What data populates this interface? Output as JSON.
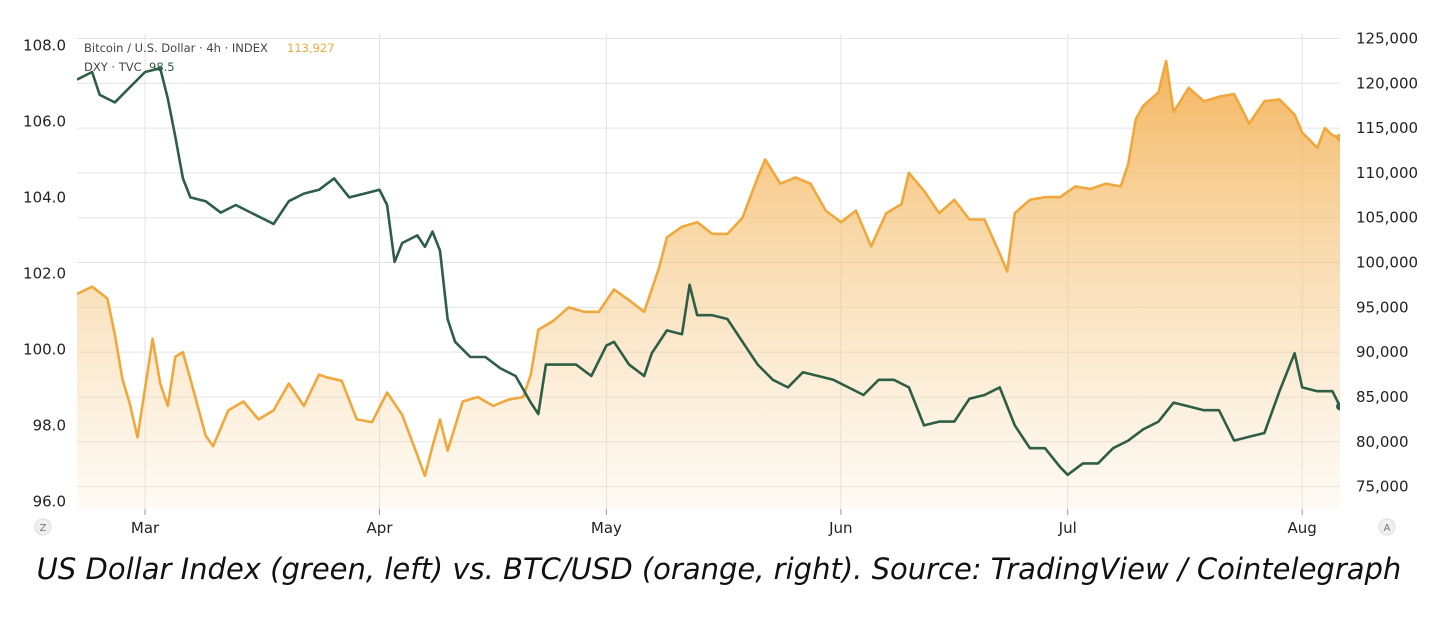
{
  "caption": "US Dollar Index (green, left) vs. BTC/USD (orange, right). Source: TradingView / Cointelegraph",
  "legend": {
    "btc_label": "Bitcoin / U.S. Dollar · 4h · INDEX",
    "btc_value": "113,927",
    "dxy_label": "DXY · TVC",
    "dxy_value": "98.5"
  },
  "buttons": {
    "zoom_label": "Z",
    "auto_label": "A"
  },
  "colors": {
    "btc": "#f0a83c",
    "dxy": "#2e5e45",
    "grid": "#e4e4e4"
  },
  "chart_data": {
    "type": "line",
    "title": "",
    "x_axis": {
      "type": "date",
      "ticks": [
        "Mar",
        "Apr",
        "May",
        "Jun",
        "Jul",
        "Aug"
      ],
      "tick_dates": [
        "2025-03-01",
        "2025-04-01",
        "2025-05-01",
        "2025-06-01",
        "2025-07-01",
        "2025-08-01"
      ],
      "range": [
        "2025-02-20",
        "2025-08-06"
      ]
    },
    "y_left": {
      "ticks": [
        "96.0",
        "98.0",
        "100.0",
        "102.0",
        "104.0",
        "106.0",
        "108.0"
      ],
      "range": [
        95.8,
        108.3
      ]
    },
    "y_right": {
      "ticks": [
        "75,000",
        "80,000",
        "85,000",
        "90,000",
        "95,000",
        "100,000",
        "105,000",
        "110,000",
        "115,000",
        "120,000",
        "125,000"
      ],
      "range": [
        72500,
        125500
      ]
    },
    "grid": true,
    "series": [
      {
        "name": "Bitcoin / U.S. Dollar · 4h · INDEX",
        "axis": "right",
        "style": "area",
        "points": [
          [
            "2025-02-20",
            96500
          ],
          [
            "2025-02-22",
            97300
          ],
          [
            "2025-02-24",
            96000
          ],
          [
            "2025-02-25",
            92000
          ],
          [
            "2025-02-26",
            87000
          ],
          [
            "2025-02-27",
            84200
          ],
          [
            "2025-02-28",
            80500
          ],
          [
            "2025-03-01",
            86000
          ],
          [
            "2025-03-02",
            91500
          ],
          [
            "2025-03-03",
            86500
          ],
          [
            "2025-03-04",
            84000
          ],
          [
            "2025-03-05",
            89500
          ],
          [
            "2025-03-06",
            90000
          ],
          [
            "2025-03-07",
            87000
          ],
          [
            "2025-03-09",
            80700
          ],
          [
            "2025-03-10",
            79500
          ],
          [
            "2025-03-11",
            81500
          ],
          [
            "2025-03-12",
            83500
          ],
          [
            "2025-03-14",
            84500
          ],
          [
            "2025-03-16",
            82500
          ],
          [
            "2025-03-18",
            83500
          ],
          [
            "2025-03-20",
            86500
          ],
          [
            "2025-03-22",
            84000
          ],
          [
            "2025-03-24",
            87500
          ],
          [
            "2025-03-25",
            87200
          ],
          [
            "2025-03-27",
            86800
          ],
          [
            "2025-03-29",
            82500
          ],
          [
            "2025-03-31",
            82200
          ],
          [
            "2025-04-02",
            85500
          ],
          [
            "2025-04-04",
            83000
          ],
          [
            "2025-04-06",
            78500
          ],
          [
            "2025-04-07",
            76200
          ],
          [
            "2025-04-08",
            79500
          ],
          [
            "2025-04-09",
            82500
          ],
          [
            "2025-04-10",
            79000
          ],
          [
            "2025-04-12",
            84500
          ],
          [
            "2025-04-14",
            85000
          ],
          [
            "2025-04-16",
            84000
          ],
          [
            "2025-04-18",
            84700
          ],
          [
            "2025-04-20",
            85000
          ],
          [
            "2025-04-21",
            87500
          ],
          [
            "2025-04-22",
            92500
          ],
          [
            "2025-04-24",
            93500
          ],
          [
            "2025-04-26",
            95000
          ],
          [
            "2025-04-28",
            94500
          ],
          [
            "2025-04-30",
            94500
          ],
          [
            "2025-05-02",
            97000
          ],
          [
            "2025-05-04",
            95800
          ],
          [
            "2025-05-06",
            94500
          ],
          [
            "2025-05-08",
            99500
          ],
          [
            "2025-05-09",
            102800
          ],
          [
            "2025-05-11",
            104000
          ],
          [
            "2025-05-13",
            104500
          ],
          [
            "2025-05-15",
            103200
          ],
          [
            "2025-05-17",
            103200
          ],
          [
            "2025-05-19",
            105000
          ],
          [
            "2025-05-21",
            109500
          ],
          [
            "2025-05-22",
            111500
          ],
          [
            "2025-05-24",
            108800
          ],
          [
            "2025-05-26",
            109500
          ],
          [
            "2025-05-28",
            108800
          ],
          [
            "2025-05-30",
            105800
          ],
          [
            "2025-06-01",
            104500
          ],
          [
            "2025-06-03",
            105800
          ],
          [
            "2025-06-05",
            101800
          ],
          [
            "2025-06-07",
            105500
          ],
          [
            "2025-06-09",
            106500
          ],
          [
            "2025-06-10",
            110000
          ],
          [
            "2025-06-12",
            108000
          ],
          [
            "2025-06-14",
            105500
          ],
          [
            "2025-06-16",
            107000
          ],
          [
            "2025-06-18",
            104800
          ],
          [
            "2025-06-20",
            104800
          ],
          [
            "2025-06-22",
            101000
          ],
          [
            "2025-06-23",
            99000
          ],
          [
            "2025-06-24",
            105500
          ],
          [
            "2025-06-26",
            107000
          ],
          [
            "2025-06-28",
            107300
          ],
          [
            "2025-06-30",
            107300
          ],
          [
            "2025-07-02",
            108500
          ],
          [
            "2025-07-04",
            108200
          ],
          [
            "2025-07-06",
            108800
          ],
          [
            "2025-07-08",
            108500
          ],
          [
            "2025-07-09",
            111000
          ],
          [
            "2025-07-10",
            116000
          ],
          [
            "2025-07-11",
            117500
          ],
          [
            "2025-07-13",
            119000
          ],
          [
            "2025-07-14",
            122500
          ],
          [
            "2025-07-15",
            116800
          ],
          [
            "2025-07-17",
            119500
          ],
          [
            "2025-07-19",
            118000
          ],
          [
            "2025-07-21",
            118500
          ],
          [
            "2025-07-23",
            118800
          ],
          [
            "2025-07-25",
            115500
          ],
          [
            "2025-07-27",
            118000
          ],
          [
            "2025-07-29",
            118200
          ],
          [
            "2025-07-31",
            116500
          ],
          [
            "2025-08-01",
            114500
          ],
          [
            "2025-08-03",
            112800
          ],
          [
            "2025-08-04",
            115000
          ],
          [
            "2025-08-05",
            114200
          ],
          [
            "2025-08-06",
            113927
          ]
        ]
      },
      {
        "name": "DXY · TVC",
        "axis": "left",
        "style": "line",
        "points": [
          [
            "2025-02-20",
            107.1
          ],
          [
            "2025-02-22",
            107.3
          ],
          [
            "2025-02-23",
            106.7
          ],
          [
            "2025-02-25",
            106.5
          ],
          [
            "2025-02-27",
            106.9
          ],
          [
            "2025-03-01",
            107.3
          ],
          [
            "2025-03-03",
            107.4
          ],
          [
            "2025-03-04",
            106.6
          ],
          [
            "2025-03-05",
            105.6
          ],
          [
            "2025-03-06",
            104.5
          ],
          [
            "2025-03-07",
            104.0
          ],
          [
            "2025-03-09",
            103.9
          ],
          [
            "2025-03-11",
            103.6
          ],
          [
            "2025-03-13",
            103.8
          ],
          [
            "2025-03-15",
            103.6
          ],
          [
            "2025-03-17",
            103.4
          ],
          [
            "2025-03-18",
            103.3
          ],
          [
            "2025-03-20",
            103.9
          ],
          [
            "2025-03-22",
            104.1
          ],
          [
            "2025-03-24",
            104.2
          ],
          [
            "2025-03-26",
            104.5
          ],
          [
            "2025-03-28",
            104.0
          ],
          [
            "2025-03-30",
            104.1
          ],
          [
            "2025-04-01",
            104.2
          ],
          [
            "2025-04-02",
            103.8
          ],
          [
            "2025-04-03",
            102.3
          ],
          [
            "2025-04-04",
            102.8
          ],
          [
            "2025-04-06",
            103.0
          ],
          [
            "2025-04-07",
            102.7
          ],
          [
            "2025-04-08",
            103.1
          ],
          [
            "2025-04-09",
            102.6
          ],
          [
            "2025-04-10",
            100.8
          ],
          [
            "2025-04-11",
            100.2
          ],
          [
            "2025-04-13",
            99.8
          ],
          [
            "2025-04-15",
            99.8
          ],
          [
            "2025-04-17",
            99.5
          ],
          [
            "2025-04-19",
            99.3
          ],
          [
            "2025-04-21",
            98.6
          ],
          [
            "2025-04-22",
            98.3
          ],
          [
            "2025-04-23",
            99.6
          ],
          [
            "2025-04-25",
            99.6
          ],
          [
            "2025-04-27",
            99.6
          ],
          [
            "2025-04-29",
            99.3
          ],
          [
            "2025-05-01",
            100.1
          ],
          [
            "2025-05-02",
            100.2
          ],
          [
            "2025-05-04",
            99.6
          ],
          [
            "2025-05-06",
            99.3
          ],
          [
            "2025-05-07",
            99.9
          ],
          [
            "2025-05-09",
            100.5
          ],
          [
            "2025-05-11",
            100.4
          ],
          [
            "2025-05-12",
            101.7
          ],
          [
            "2025-05-13",
            100.9
          ],
          [
            "2025-05-15",
            100.9
          ],
          [
            "2025-05-17",
            100.8
          ],
          [
            "2025-05-19",
            100.2
          ],
          [
            "2025-05-21",
            99.6
          ],
          [
            "2025-05-23",
            99.2
          ],
          [
            "2025-05-25",
            99.0
          ],
          [
            "2025-05-27",
            99.4
          ],
          [
            "2025-05-29",
            99.3
          ],
          [
            "2025-05-31",
            99.2
          ],
          [
            "2025-06-02",
            99.0
          ],
          [
            "2025-06-04",
            98.8
          ],
          [
            "2025-06-06",
            99.2
          ],
          [
            "2025-06-08",
            99.2
          ],
          [
            "2025-06-10",
            99.0
          ],
          [
            "2025-06-12",
            98.0
          ],
          [
            "2025-06-14",
            98.1
          ],
          [
            "2025-06-16",
            98.1
          ],
          [
            "2025-06-18",
            98.7
          ],
          [
            "2025-06-20",
            98.8
          ],
          [
            "2025-06-22",
            99.0
          ],
          [
            "2025-06-24",
            98.0
          ],
          [
            "2025-06-26",
            97.4
          ],
          [
            "2025-06-28",
            97.4
          ],
          [
            "2025-06-30",
            96.9
          ],
          [
            "2025-07-01",
            96.7
          ],
          [
            "2025-07-03",
            97.0
          ],
          [
            "2025-07-05",
            97.0
          ],
          [
            "2025-07-07",
            97.4
          ],
          [
            "2025-07-09",
            97.6
          ],
          [
            "2025-07-11",
            97.9
          ],
          [
            "2025-07-13",
            98.1
          ],
          [
            "2025-07-15",
            98.6
          ],
          [
            "2025-07-17",
            98.5
          ],
          [
            "2025-07-19",
            98.4
          ],
          [
            "2025-07-21",
            98.4
          ],
          [
            "2025-07-23",
            97.6
          ],
          [
            "2025-07-25",
            97.7
          ],
          [
            "2025-07-27",
            97.8
          ],
          [
            "2025-07-29",
            98.9
          ],
          [
            "2025-07-31",
            99.9
          ],
          [
            "2025-08-01",
            99.0
          ],
          [
            "2025-08-03",
            98.9
          ],
          [
            "2025-08-05",
            98.9
          ],
          [
            "2025-08-06",
            98.5
          ]
        ]
      }
    ]
  }
}
